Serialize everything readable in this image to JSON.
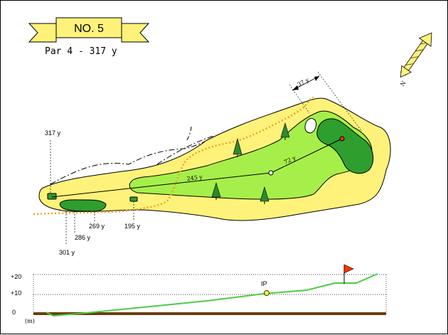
{
  "hole": {
    "number_label": "NO. 5",
    "par_yardage": "Par 4 - 317 y"
  },
  "compass": {
    "north_label": "N"
  },
  "map": {
    "distance_labels": {
      "tee_317": "317 y",
      "tee_301": "301 y",
      "tee_286": "286 y",
      "tee_269": "269 y",
      "tee_195": "195 y",
      "shot_245": "245 y",
      "shot_72": "72 y",
      "green_depth_37": "37 y"
    }
  },
  "elevation_profile": {
    "y_ticks": [
      "+20",
      "+10",
      "0"
    ],
    "unit_label": "(m)",
    "ip_label": "IP"
  },
  "colors": {
    "rough": "#fff27a",
    "fairway": "#a6ef4a",
    "green": "#2e9e2e",
    "tee": "#2e9e2e",
    "ob_line": "#f0a020",
    "profile_line": "#4ccc44",
    "ground_fill": "#6b3e12",
    "flag": "#ff3300",
    "banner": "#fff27a"
  }
}
